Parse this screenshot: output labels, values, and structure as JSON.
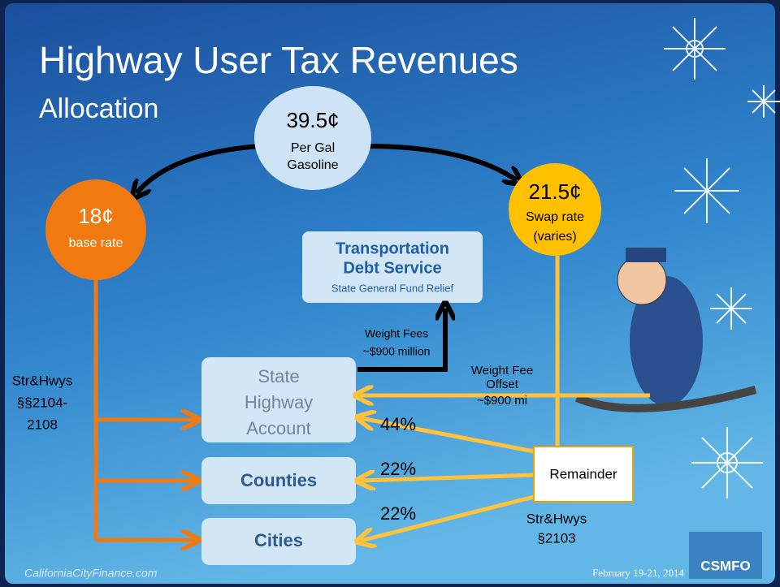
{
  "header": {
    "title": "Highway User Tax Revenues",
    "subtitle": "Allocation"
  },
  "source": {
    "rate": "39.5¢",
    "line1": "Per Gal",
    "line2": "Gasoline"
  },
  "base": {
    "rate": "18¢",
    "label": "base rate"
  },
  "swap": {
    "rate": "21.5¢",
    "line1": "Swap rate",
    "line2": "(varies)"
  },
  "debt_service": {
    "line1": "Transportation",
    "line2": "Debt Service",
    "line3": "State General Fund Relief"
  },
  "weight_fees": {
    "line1": "Weight Fees",
    "line2": "~$900 million"
  },
  "base_code": {
    "line1": "Str&Hwys",
    "line2": "§§2104-",
    "line3": "2108"
  },
  "sha": {
    "line1": "State",
    "line2": "Highway",
    "line3": "Account"
  },
  "counties": "Counties",
  "cities": "Cities",
  "offset": {
    "line1": "Weight Fee",
    "line2": "Offset",
    "line3": "~$900 mi"
  },
  "shares": {
    "sha": "44%",
    "counties": "22%",
    "cities": "22%"
  },
  "remainder": "Remainder",
  "swap_code": {
    "line1": "Str&Hwys",
    "line2": "§2103"
  },
  "footer": {
    "site": "CaliforniaCityFinance.com",
    "date": "February 19-21, 2014",
    "logo": "CSMFO"
  }
}
